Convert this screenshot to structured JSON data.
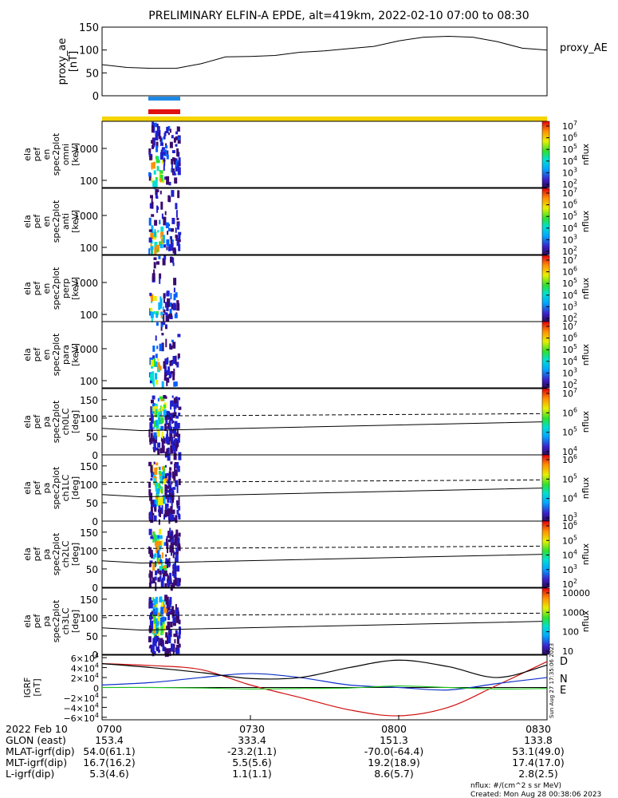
{
  "title": "PRELIMINARY ELFIN-A EPDE, alt=419km, 2022-02-10 07:00 to 08:30",
  "colors": {
    "bar_blue": "#1e88e5",
    "bar_red": "#e01010",
    "bar_yellow": "#f5d400",
    "grf_d": "#d01010",
    "grf_n": "#1030c8",
    "grf_e": "#20c020",
    "grf_black": "#000000"
  },
  "chart_data": [
    {
      "id": "proxy_ae",
      "type": "line",
      "ylabel": [
        "proxy_ae",
        "[nT]"
      ],
      "legend": "proxy_AE",
      "ylim": [
        0,
        150
      ],
      "yticks": [
        "0",
        "50",
        "100",
        "150"
      ],
      "x_minutes": [
        0,
        5,
        10,
        15,
        20,
        25,
        30,
        35,
        40,
        45,
        50,
        55,
        60,
        65,
        70,
        75,
        80,
        85,
        90
      ],
      "values": [
        68,
        62,
        60,
        60,
        70,
        85,
        86,
        88,
        95,
        98,
        103,
        108,
        120,
        128,
        130,
        128,
        118,
        104,
        100
      ]
    },
    {
      "id": "en_omni",
      "type": "heatmap",
      "ylabel": [
        "ela",
        "pef",
        "en",
        "spec2plot",
        "omni",
        "[keV]"
      ],
      "yticks": [
        "100",
        "1000"
      ],
      "cbar_ticks": [
        "10^7",
        "10^6",
        "10^5",
        "10^4",
        "10^3",
        "10^2"
      ],
      "cbar_label": "nflux"
    },
    {
      "id": "en_anti",
      "type": "heatmap",
      "ylabel": [
        "ela",
        "pef",
        "en",
        "spec2plot",
        "anti",
        "[keV]"
      ],
      "yticks": [
        "100",
        "1000"
      ],
      "cbar_ticks": [
        "10^7",
        "10^6",
        "10^5",
        "10^4",
        "10^3",
        "10^2"
      ],
      "cbar_label": "nflux"
    },
    {
      "id": "en_perp",
      "type": "heatmap",
      "ylabel": [
        "ela",
        "pef",
        "en",
        "spec2plot",
        "perp",
        "[keV]"
      ],
      "yticks": [
        "100",
        "1000"
      ],
      "cbar_ticks": [
        "10^7",
        "10^6",
        "10^5",
        "10^4",
        "10^3",
        "10^2"
      ],
      "cbar_label": "nflux"
    },
    {
      "id": "en_para",
      "type": "heatmap",
      "ylabel": [
        "ela",
        "pef",
        "en",
        "spec2plot",
        "para",
        "[keV]"
      ],
      "yticks": [
        "100",
        "1000"
      ],
      "cbar_ticks": [
        "10^7",
        "10^6",
        "10^5",
        "10^4",
        "10^3",
        "10^2"
      ],
      "cbar_label": "nflux"
    },
    {
      "id": "pa_ch0",
      "type": "heatmap",
      "ylabel": [
        "ela",
        "pef",
        "pa",
        "spec2plot",
        "ch0LC",
        "[deg]"
      ],
      "ylim": [
        0,
        180
      ],
      "yticks": [
        "0",
        "50",
        "100",
        "150"
      ],
      "cbar_ticks": [
        "10^7",
        "10^6",
        "10^5",
        "10^4"
      ],
      "cbar_label": "nflux"
    },
    {
      "id": "pa_ch1",
      "type": "heatmap",
      "ylabel": [
        "ela",
        "pef",
        "pa",
        "spec2plot",
        "ch1LC",
        "[deg]"
      ],
      "ylim": [
        0,
        180
      ],
      "yticks": [
        "0",
        "50",
        "100",
        "150"
      ],
      "cbar_ticks": [
        "10^6",
        "10^5",
        "10^4",
        "10^3"
      ],
      "cbar_label": "nflux"
    },
    {
      "id": "pa_ch2",
      "type": "heatmap",
      "ylabel": [
        "ela",
        "pef",
        "pa",
        "spec2plot",
        "ch2LC",
        "[deg]"
      ],
      "ylim": [
        0,
        180
      ],
      "yticks": [
        "0",
        "50",
        "100",
        "150"
      ],
      "cbar_ticks": [
        "10^6",
        "10^5",
        "10^4",
        "10^3",
        "10^2"
      ],
      "cbar_label": "nflux"
    },
    {
      "id": "pa_ch3",
      "type": "heatmap",
      "ylabel": [
        "ela",
        "pef",
        "pa",
        "spec2plot",
        "ch3LC",
        "[deg]"
      ],
      "ylim": [
        0,
        180
      ],
      "yticks": [
        "0",
        "50",
        "100",
        "150"
      ],
      "cbar_ticks": [
        "10000",
        "1000",
        "100",
        "10"
      ],
      "cbar_label": "nflux"
    },
    {
      "id": "igrf",
      "type": "line",
      "ylabel": [
        "IGRF",
        "[nT]"
      ],
      "ylim": [
        -65000,
        65000
      ],
      "yticks": [
        "6×10^4",
        "4×10^4",
        "2×10^4",
        "0",
        "−2×10^4",
        "−4×10^4",
        "−6×10^4"
      ],
      "legend": [
        "D",
        "N",
        "E"
      ],
      "x_minutes": [
        0,
        10,
        20,
        30,
        40,
        50,
        60,
        70,
        80,
        90
      ],
      "series": [
        {
          "name": "D",
          "values": [
            48000,
            44000,
            36000,
            5000,
            -20000,
            -45000,
            -57000,
            -40000,
            5000,
            52000
          ]
        },
        {
          "name": "N",
          "values": [
            5000,
            10000,
            20000,
            28000,
            20000,
            5000,
            0,
            -5000,
            8000,
            20000
          ]
        },
        {
          "name": "E",
          "values": [
            0,
            0,
            -1000,
            -3000,
            -2000,
            -1000,
            3000,
            0,
            -3000,
            -2000
          ]
        },
        {
          "name": "",
          "values": [
            48000,
            40000,
            30000,
            18000,
            20000,
            40000,
            55000,
            42000,
            20000,
            45000
          ]
        }
      ]
    }
  ],
  "side_stamp": "Sun Aug 27 17:35:06 2023",
  "footer": {
    "rows": [
      {
        "label": "2022 Feb 10",
        "vals": [
          "0700",
          "0730",
          "0800",
          "0830"
        ]
      },
      {
        "label": "GLON (east)",
        "vals": [
          "153.4",
          "333.4",
          "151.3",
          "133.8"
        ]
      },
      {
        "label": "MLAT-igrf(dip)",
        "vals": [
          "54.0(61.1)",
          "-23.2(1.1)",
          "-70.0(-64.4)",
          "53.1(49.0)"
        ]
      },
      {
        "label": "MLT-igrf(dip)",
        "vals": [
          "16.7(16.2)",
          "5.5(5.6)",
          "19.2(18.9)",
          "17.4(17.0)"
        ]
      },
      {
        "label": "L-igrf(dip)",
        "vals": [
          "5.3(4.6)",
          "1.1(1.1)",
          "8.6(5.7)",
          "2.8(2.5)"
        ]
      }
    ],
    "note1": "nflux: #/(cm^2 s sr MeV)",
    "note2": "Created: Mon Aug 28 00:38:06 2023"
  }
}
